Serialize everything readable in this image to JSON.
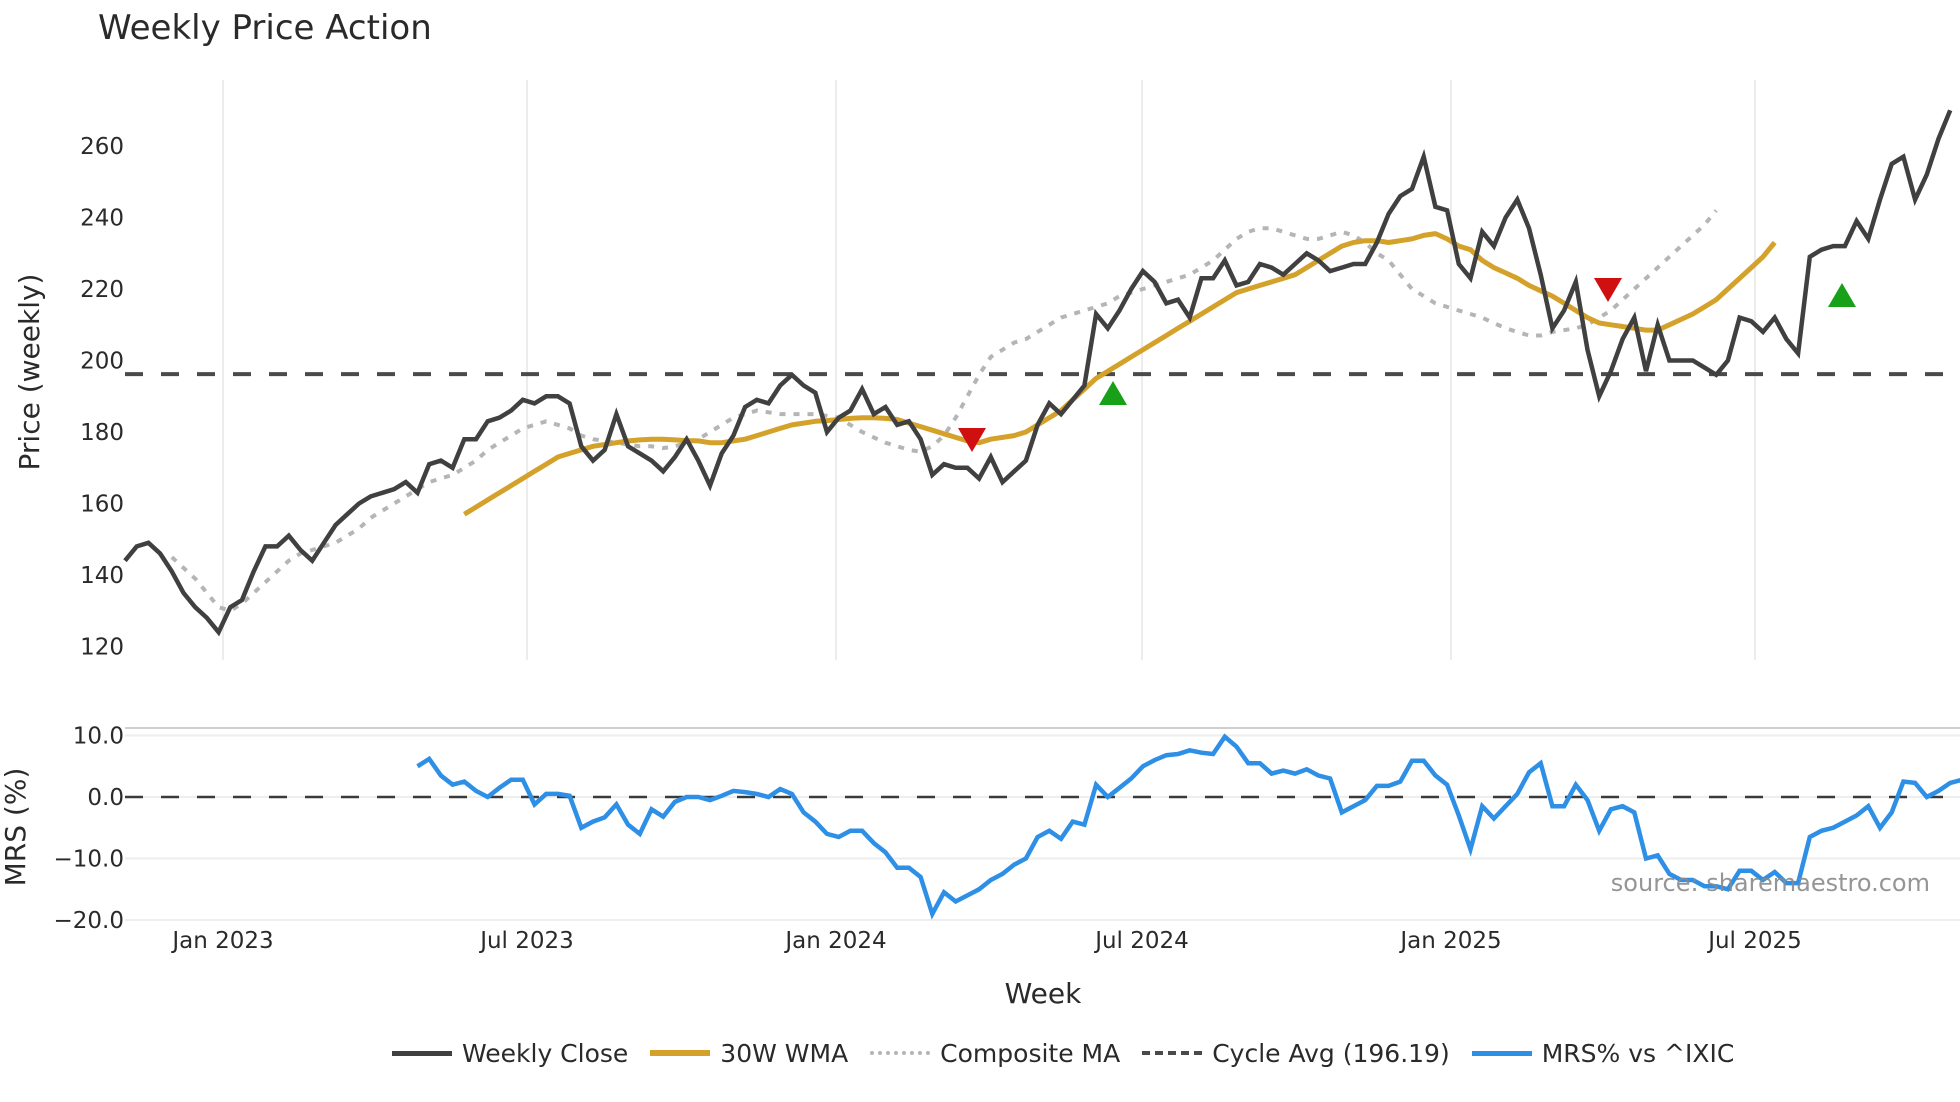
{
  "title": "Weekly Price Action",
  "colors": {
    "close": "#404040",
    "wma": "#d4a22a",
    "composite": "#b5b5b5",
    "cycle": "#4a4a4a",
    "mrs": "#2e8fe6",
    "signal_up": "#18a018",
    "signal_down": "#d01010",
    "grid": "#ececec"
  },
  "price_panel": {
    "ylabel": "Price (weekly)",
    "yticks": [
      "120",
      "140",
      "160",
      "180",
      "200",
      "220",
      "240",
      "260"
    ]
  },
  "mrs_panel": {
    "ylabel": "MRS (%)",
    "yticks": [
      "10.0",
      "0.0",
      "−10.0",
      "−20.0"
    ]
  },
  "xaxis": {
    "label": "Week",
    "ticks": [
      "Jan 2023",
      "Jul 2023",
      "Jan 2024",
      "Jul 2024",
      "Jan 2025",
      "Jul 2025"
    ]
  },
  "watermark": "source: sharemaestro.com",
  "legend": [
    {
      "label": "Weekly Close",
      "style": "solid",
      "color": "#404040"
    },
    {
      "label": "30W WMA",
      "style": "solid",
      "color": "#d4a22a"
    },
    {
      "label": "Composite MA",
      "style": "dotted",
      "color": "#b5b5b5"
    },
    {
      "label": "Cycle Avg (196.19)",
      "style": "dashed",
      "color": "#4a4a4a"
    },
    {
      "label": "MRS% vs ^IXIC",
      "style": "solid",
      "color": "#2e8fe6"
    }
  ],
  "chart_data": [
    {
      "type": "line",
      "title": "Weekly Price Action",
      "xlabel": "Week",
      "ylabel": "Price (weekly)",
      "ylim": [
        117,
        279
      ],
      "grid": true,
      "legend_position": "bottom",
      "x_start_index_offset_weeks_before_jan2023": 8,
      "x_tick_labels": [
        "Jan 2023",
        "Jul 2023",
        "Jan 2024",
        "Jul 2024",
        "Jan 2025",
        "Jul 2025"
      ],
      "series": [
        {
          "name": "Weekly Close",
          "start_index": 0,
          "values": [
            144,
            148,
            149,
            146,
            141,
            135,
            131,
            128,
            124,
            131,
            133,
            141,
            148,
            148,
            151,
            147,
            144,
            149,
            154,
            157,
            160,
            162,
            163,
            164,
            166,
            163,
            171,
            172,
            170,
            178,
            178,
            183,
            184,
            186,
            189,
            188,
            190,
            190,
            188,
            176,
            172,
            175,
            185,
            176,
            174,
            172,
            169,
            173,
            178,
            172,
            165,
            174,
            179,
            187,
            189,
            188,
            193,
            196,
            193,
            191,
            180,
            184,
            186,
            192,
            185,
            187,
            182,
            183,
            178,
            168,
            171,
            170,
            170,
            167,
            173,
            166,
            169,
            172,
            182,
            188,
            185,
            189,
            193,
            213,
            209,
            214,
            220,
            225,
            222,
            216,
            217,
            212,
            223,
            223,
            228,
            221,
            222,
            227,
            226,
            224,
            227,
            230,
            228,
            225,
            226,
            227,
            227,
            233,
            241,
            246,
            248,
            257,
            243,
            242,
            227,
            223,
            236,
            232,
            240,
            245,
            237,
            224,
            209,
            214,
            222,
            203,
            190,
            197,
            206,
            212,
            197,
            210,
            200,
            200,
            200,
            198,
            196,
            200,
            212,
            211,
            208,
            212,
            206,
            202,
            229,
            231,
            232,
            232,
            239,
            234,
            245,
            255,
            257,
            245,
            252,
            262,
            270
          ]
        },
        {
          "name": "30W WMA",
          "start_index": 29,
          "values": [
            157,
            159,
            161,
            163,
            165,
            167,
            169,
            171,
            173,
            174,
            175,
            176,
            176.5,
            177,
            177.5,
            177.8,
            178,
            178,
            177.8,
            177.6,
            177.5,
            177,
            177,
            177.5,
            178,
            179,
            180,
            181,
            182,
            182.5,
            183,
            183.2,
            183.5,
            183.8,
            184,
            184,
            183.8,
            183.5,
            182.5,
            181.5,
            180.5,
            179.5,
            178.5,
            177.5,
            177,
            178,
            178.5,
            179,
            180,
            182,
            184,
            186,
            189,
            192,
            195,
            197,
            199,
            201,
            203,
            205,
            207,
            209,
            211,
            213,
            215,
            217,
            219,
            220,
            221,
            222,
            223,
            224,
            226,
            228,
            230,
            232,
            233,
            233.5,
            233.5,
            233,
            233.5,
            234,
            235,
            235.5,
            234,
            232,
            231,
            228,
            226,
            224.5,
            223,
            221,
            219.5,
            218,
            216,
            214,
            212,
            210.5,
            210,
            209.5,
            209,
            208.5,
            208.5,
            210,
            211.5,
            213,
            215,
            217,
            220,
            223,
            226,
            229,
            233
          ]
        },
        {
          "name": "Composite MA",
          "start_index": 4,
          "values": [
            145,
            142,
            139,
            135,
            131,
            130,
            132,
            135,
            138,
            141,
            144,
            146,
            147,
            148,
            149,
            151,
            153,
            156,
            158,
            160,
            162,
            164,
            166,
            167,
            168,
            170,
            172,
            175,
            177,
            179,
            181,
            182,
            183,
            182,
            181,
            179,
            178,
            177.5,
            177,
            176.5,
            176,
            176,
            175.5,
            176,
            177,
            178,
            180,
            182,
            184,
            185,
            186,
            185.5,
            185,
            185,
            185,
            185,
            184.5,
            184,
            182,
            180,
            178.5,
            177,
            176,
            175,
            174.5,
            176,
            179,
            184,
            190,
            196,
            201,
            203,
            205,
            206,
            208,
            210,
            212,
            213,
            214,
            215,
            216,
            218,
            219,
            220,
            221,
            222,
            223,
            224,
            226,
            228,
            231,
            234,
            236,
            237,
            237,
            236,
            235,
            234,
            234,
            235,
            236,
            235,
            233,
            230,
            228,
            224,
            220,
            218,
            216,
            215,
            214,
            213,
            212,
            210.5,
            209,
            208,
            207,
            207,
            208,
            208.5,
            209,
            210,
            212,
            214,
            217,
            220,
            223,
            226,
            229,
            232,
            235,
            238,
            242
          ]
        },
        {
          "name": "Cycle Avg",
          "constant": 196.19
        }
      ],
      "annotations": [
        {
          "type": "signal_down",
          "marker": "triangle-down",
          "approx_date": "Apr 2024",
          "price": 178
        },
        {
          "type": "signal_up",
          "marker": "triangle-up",
          "approx_date": "Jun 2024",
          "price": 190
        },
        {
          "type": "signal_down",
          "marker": "triangle-down",
          "approx_date": "Apr 2025",
          "price": 220
        },
        {
          "type": "signal_up",
          "marker": "triangle-up",
          "approx_date": "Sep 2025",
          "price": 218
        }
      ]
    },
    {
      "type": "line",
      "title": "",
      "xlabel": "Week",
      "ylabel": "MRS (%)",
      "ylim": [
        -21,
        12
      ],
      "grid": true,
      "reference_line": 0,
      "series": [
        {
          "name": "MRS% vs ^IXIC",
          "start_index": 25,
          "values": [
            5,
            6.2,
            3.5,
            2,
            2.5,
            1,
            0,
            1.5,
            2.8,
            2.8,
            -1.2,
            0.5,
            0.5,
            0.2,
            -5,
            -4,
            -3.3,
            -1.2,
            -4.5,
            -6,
            -2,
            -3.2,
            -0.8,
            0,
            0,
            -0.5,
            0.2,
            1,
            0.8,
            0.5,
            0,
            1.3,
            0.5,
            -2.5,
            -4,
            -6,
            -6.5,
            -5.5,
            -5.5,
            -7.5,
            -9,
            -11.5,
            -11.5,
            -13,
            -19,
            -15.5,
            -17,
            -16,
            -15,
            -13.5,
            -12.5,
            -11,
            -10,
            -6.5,
            -5.5,
            -6.8,
            -4,
            -4.5,
            2,
            0,
            1.5,
            3,
            5,
            6,
            6.8,
            7,
            7.6,
            7.2,
            7,
            9.8,
            8.2,
            5.5,
            5.5,
            3.8,
            4.3,
            3.8,
            4.5,
            3.5,
            3,
            -2.5,
            -1.5,
            -0.5,
            1.8,
            1.8,
            2.5,
            5.9,
            5.9,
            3.5,
            2,
            -3,
            -8.5,
            -1.5,
            -3.5,
            -1.5,
            0.5,
            4,
            5.5,
            -1.5,
            -1.5,
            2,
            -0.5,
            -5.5,
            -2,
            -1.5,
            -2.5,
            -10,
            -9.5,
            -12.5,
            -13.5,
            -13.5,
            -14.5,
            -14.5,
            -15,
            -12,
            -12,
            -13.5,
            -12.2,
            -14,
            -14,
            -6.5,
            -5.5,
            -5,
            -4,
            -3,
            -1.5,
            -5,
            -2.5,
            2.5,
            2.3,
            0,
            1,
            2.3,
            2.8
          ]
        }
      ]
    }
  ]
}
